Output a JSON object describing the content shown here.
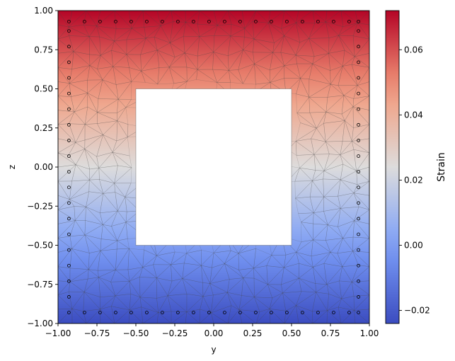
{
  "chart_data": {
    "type": "heatmap",
    "title": "",
    "xlabel": "y",
    "ylabel": "z",
    "xlim": [
      -1.0,
      1.0
    ],
    "ylim": [
      -1.0,
      1.0
    ],
    "x_ticks": [
      "−1.00",
      "−0.75",
      "−0.50",
      "−0.25",
      "0.00",
      "0.25",
      "0.50",
      "0.75",
      "1.00"
    ],
    "y_ticks": [
      "−1.00",
      "−0.75",
      "−0.50",
      "−0.25",
      "0.00",
      "0.25",
      "0.50",
      "0.75",
      "1.00"
    ],
    "x_tick_values": [
      -1.0,
      -0.75,
      -0.5,
      -0.25,
      0.0,
      0.25,
      0.5,
      0.75,
      1.0
    ],
    "y_tick_values": [
      -1.0,
      -0.75,
      -0.5,
      -0.25,
      0.0,
      0.25,
      0.5,
      0.75,
      1.0
    ],
    "grid": false,
    "colormap": "coolwarm",
    "colorbar": {
      "label": "Strain",
      "range": [
        -0.024,
        0.072
      ],
      "ticks": [
        "−0.02",
        "0.00",
        "0.02",
        "0.04",
        "0.06"
      ],
      "tick_values": [
        -0.02,
        0.0,
        0.02,
        0.04,
        0.06
      ]
    },
    "field": {
      "strain_at_z_bottom": -0.024,
      "strain_at_z_top": 0.072,
      "variation": "linear in z"
    },
    "hollow_region": {
      "y_range": [
        -0.5,
        0.5
      ],
      "z_range": [
        -0.5,
        0.5
      ]
    },
    "fiber_markers": {
      "bottom_row": {
        "z": -0.93,
        "y": [
          -0.93,
          -0.83,
          -0.73,
          -0.63,
          -0.53,
          -0.43,
          -0.33,
          -0.23,
          -0.13,
          -0.03,
          0.07,
          0.17,
          0.27,
          0.37,
          0.47,
          0.57,
          0.67,
          0.77,
          0.87,
          0.93
        ]
      },
      "top_row": {
        "z": 0.93,
        "y": [
          -0.93,
          -0.83,
          -0.73,
          -0.63,
          -0.53,
          -0.43,
          -0.33,
          -0.23,
          -0.13,
          -0.03,
          0.07,
          0.17,
          0.27,
          0.37,
          0.47,
          0.57,
          0.67,
          0.77,
          0.87,
          0.93
        ]
      },
      "left_column": {
        "y": -0.93,
        "z": [
          -0.83,
          -0.73,
          -0.63,
          -0.53,
          -0.43,
          -0.33,
          -0.23,
          -0.13,
          -0.03,
          0.07,
          0.17,
          0.27,
          0.37,
          0.47,
          0.57,
          0.67,
          0.77,
          0.87
        ]
      },
      "right_column": {
        "y": 0.93,
        "z": [
          -0.83,
          -0.73,
          -0.63,
          -0.53,
          -0.43,
          -0.33,
          -0.23,
          -0.13,
          -0.03,
          0.07,
          0.17,
          0.27,
          0.37,
          0.47,
          0.57,
          0.67,
          0.77,
          0.87
        ]
      }
    }
  }
}
